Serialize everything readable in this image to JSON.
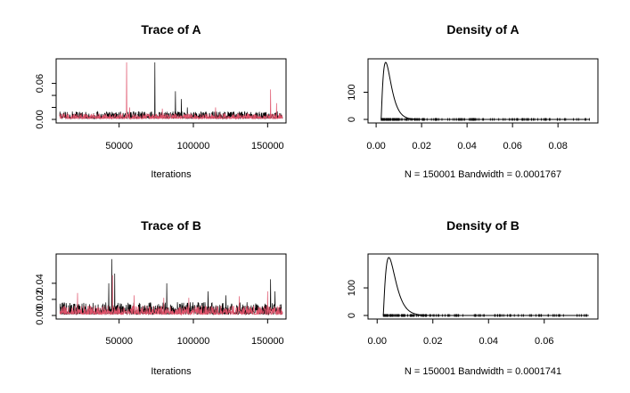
{
  "colors": {
    "chain1": "#000000",
    "chain2": "#DF536B",
    "frame": "#000000",
    "background": "#FFFFFF"
  },
  "chart_data": [
    {
      "type": "line",
      "title": "Trace of A",
      "xlabel": "Iterations",
      "ylabel": "",
      "xlim": [
        10000,
        160000
      ],
      "ylim": [
        0,
        0.095
      ],
      "xticks": [
        50000,
        100000,
        150000
      ],
      "xtick_labels": [
        "50000",
        "100000",
        "150000"
      ],
      "yticks": [
        0,
        0.02,
        0.04,
        0.06
      ],
      "ytick_labels": [
        "0.00",
        "",
        "",
        "0.06"
      ],
      "grid": false,
      "series": [
        {
          "color": "#000000",
          "baseline": 0.005,
          "noise": 0.012,
          "spikes": [
            [
              74000,
              0.095
            ],
            [
              88000,
              0.047
            ],
            [
              92000,
              0.034
            ],
            [
              96000,
              0.02
            ]
          ]
        },
        {
          "color": "#DF536B",
          "baseline": 0.004,
          "noise": 0.009,
          "spikes": [
            [
              55000,
              0.095
            ],
            [
              57000,
              0.02
            ],
            [
              79000,
              0.018
            ],
            [
              152000,
              0.05
            ],
            [
              156000,
              0.027
            ],
            [
              115000,
              0.02
            ]
          ]
        }
      ]
    },
    {
      "type": "line",
      "title": "Density of A",
      "xlabel": "N = 150001   Bandwidth = 0.0001767",
      "ylabel": "",
      "xlim": [
        -0.002,
        0.096
      ],
      "ylim": [
        0,
        210
      ],
      "xticks": [
        0,
        0.02,
        0.04,
        0.06,
        0.08
      ],
      "xtick_labels": [
        "0.00",
        "0.02",
        "0.04",
        "0.06",
        "0.08"
      ],
      "yticks": [
        0,
        100
      ],
      "ytick_labels": [
        "0",
        "100"
      ],
      "grid": false,
      "density": {
        "mode": 0.0042,
        "peak": 210,
        "start": 0.0022,
        "end": 0.094,
        "shape": 2.2
      }
    },
    {
      "type": "line",
      "title": "Trace of B",
      "xlabel": "Iterations",
      "ylabel": "",
      "xlim": [
        10000,
        160000
      ],
      "ylim": [
        0,
        0.072
      ],
      "xticks": [
        50000,
        100000,
        150000
      ],
      "xtick_labels": [
        "50000",
        "100000",
        "150000"
      ],
      "yticks": [
        0,
        0.02,
        0.04
      ],
      "ytick_labels": [
        "0.00",
        "0.02",
        "0.04"
      ],
      "grid": false,
      "series": [
        {
          "color": "#000000",
          "baseline": 0.005,
          "noise": 0.015,
          "spikes": [
            [
              45000,
              0.07
            ],
            [
              47000,
              0.052
            ],
            [
              43000,
              0.04
            ],
            [
              82000,
              0.04
            ],
            [
              110000,
              0.03
            ],
            [
              122000,
              0.025
            ],
            [
              152000,
              0.045
            ],
            [
              155000,
              0.03
            ]
          ]
        },
        {
          "color": "#DF536B",
          "baseline": 0.004,
          "noise": 0.011,
          "spikes": [
            [
              22000,
              0.028
            ],
            [
              45500,
              0.05
            ],
            [
              60000,
              0.025
            ],
            [
              80000,
              0.022
            ],
            [
              97000,
              0.022
            ],
            [
              131000,
              0.024
            ],
            [
              150000,
              0.03
            ]
          ]
        }
      ]
    },
    {
      "type": "line",
      "title": "Density of B",
      "xlabel": "N = 150001   Bandwidth = 0.0001741",
      "ylabel": "",
      "xlim": [
        -0.002,
        0.078
      ],
      "ylim": [
        0,
        210
      ],
      "xticks": [
        0,
        0.02,
        0.04,
        0.06
      ],
      "xtick_labels": [
        "0.00",
        "0.02",
        "0.04",
        "0.06"
      ],
      "yticks": [
        0,
        100
      ],
      "ytick_labels": [
        "0",
        "100"
      ],
      "grid": false,
      "density": {
        "mode": 0.0042,
        "peak": 210,
        "start": 0.0022,
        "end": 0.076,
        "shape": 2.2
      }
    }
  ]
}
